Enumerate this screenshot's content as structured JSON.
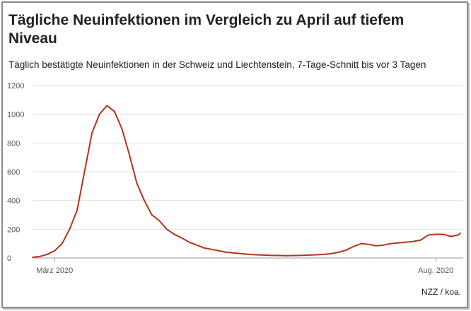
{
  "chart_data": {
    "type": "line",
    "title": "Tägliche Neuinfektionen im Vergleich zu April auf tiefem Niveau",
    "subtitle": "Täglich bestätigte Neuinfektionen in der Schweiz und Liechtenstein, 7-Tage-Schnitt bis vor 3 Tagen",
    "source": "NZZ / koa.",
    "x": [
      -9,
      -6,
      -3,
      0,
      3,
      6,
      9,
      12,
      15,
      18,
      21,
      24,
      27,
      30,
      33,
      36,
      39,
      42,
      45,
      48,
      51,
      54,
      57,
      60,
      63,
      66,
      69,
      72,
      75,
      78,
      81,
      84,
      87,
      90,
      93,
      96,
      99,
      102,
      105,
      108,
      111,
      114,
      117,
      120,
      123,
      126,
      129,
      132,
      135,
      138,
      141,
      144,
      147,
      150,
      153,
      156,
      159,
      162,
      163
    ],
    "series": [
      {
        "name": "Neuinfektionen",
        "color": "#b5331a",
        "values": [
          5,
          10,
          25,
          50,
          100,
          200,
          330,
          600,
          870,
          1000,
          1060,
          1020,
          900,
          720,
          520,
          400,
          300,
          260,
          200,
          165,
          140,
          110,
          90,
          70,
          60,
          50,
          40,
          35,
          30,
          25,
          22,
          20,
          18,
          17,
          16,
          17,
          18,
          20,
          22,
          25,
          30,
          40,
          55,
          80,
          100,
          95,
          85,
          90,
          100,
          105,
          110,
          115,
          125,
          160,
          165,
          165,
          150,
          160,
          175
        ]
      }
    ],
    "xlim": [
      -10,
      164
    ],
    "xticks": [
      {
        "value": 0,
        "label": "März 2020"
      },
      {
        "value": 153,
        "label": "Aug. 2020"
      }
    ],
    "ylim": [
      0,
      1200
    ],
    "yticks": [
      0,
      200,
      400,
      600,
      800,
      1000,
      1200
    ],
    "grid": true
  }
}
